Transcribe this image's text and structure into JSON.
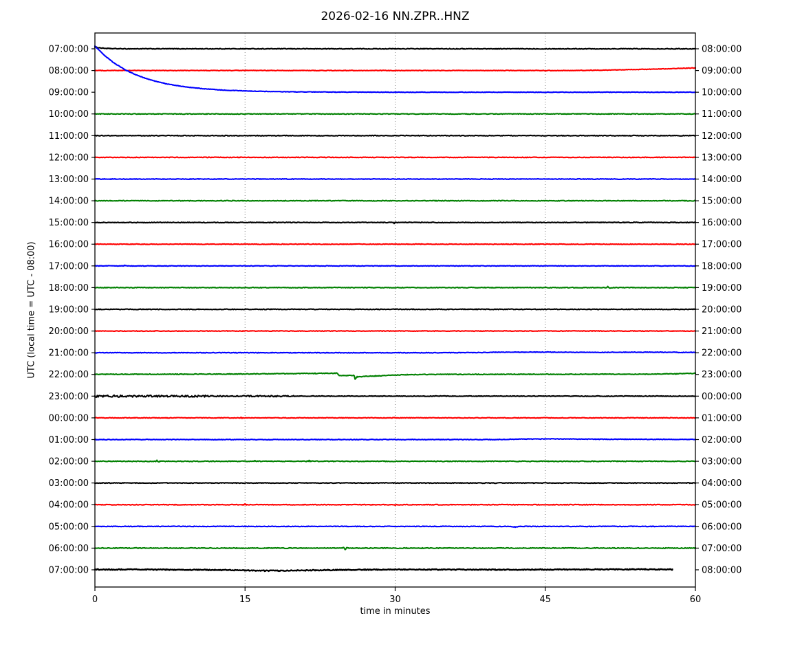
{
  "figure": {
    "title": "2026-02-16 NN.ZPR..HNZ",
    "xlabel": "time in minutes",
    "ylabel": "UTC (local time = UTC - 08:00)"
  },
  "chart_data": {
    "type": "line",
    "subtype": "helicorder-dayplot",
    "title": "2026-02-16 NN.ZPR..HNZ",
    "xlabel": "time in minutes",
    "ylabel": "UTC (local time = UTC - 08:00)",
    "x_range": [
      0,
      60
    ],
    "x_ticks": [
      "0",
      "15",
      "30",
      "45",
      "60"
    ],
    "x_tick_values": [
      0,
      15,
      30,
      45,
      60
    ],
    "grid_minutes": [
      15,
      30,
      45
    ],
    "grid_on": true,
    "minutes_per_line": 60,
    "legend": "none",
    "color_cycle": [
      "#000000",
      "#ff0000",
      "#0000ff",
      "#008000"
    ],
    "rows": [
      {
        "left": "07:00:00",
        "right": "08:00:00",
        "color": "#000000",
        "points": [
          [
            0,
            2.5
          ],
          [
            0.7,
            1.0
          ],
          [
            1.5,
            0.3
          ],
          [
            3,
            0
          ],
          [
            60,
            0
          ]
        ],
        "noise": [
          [
            0,
            60,
            0.5
          ]
        ]
      },
      {
        "left": "08:00:00",
        "right": "09:00:00",
        "color": "#ff0000",
        "points": [
          [
            0,
            0
          ],
          [
            48,
            0
          ],
          [
            52,
            0.8
          ],
          [
            56,
            2.0
          ],
          [
            60,
            3.8
          ]
        ],
        "noise": [
          [
            0,
            60,
            0.4
          ]
        ]
      },
      {
        "left": "09:00:00",
        "right": "10:00:00",
        "color": "#0000ff",
        "points": [
          [
            0,
            67
          ],
          [
            1,
            52.8
          ],
          [
            2,
            41.6
          ],
          [
            3,
            32.8
          ],
          [
            4,
            25.9
          ],
          [
            5,
            20.4
          ],
          [
            6,
            16.1
          ],
          [
            7,
            12.7
          ],
          [
            8,
            10.0
          ],
          [
            9,
            7.9
          ],
          [
            10,
            6.2
          ],
          [
            11,
            4.9
          ],
          [
            12,
            3.9
          ],
          [
            13,
            3.0
          ],
          [
            14,
            2.4
          ],
          [
            15,
            1.9
          ],
          [
            16,
            1.5
          ],
          [
            17,
            1.2
          ],
          [
            18,
            0.9
          ],
          [
            19,
            0.7
          ],
          [
            20,
            0.55
          ],
          [
            22,
            0.35
          ],
          [
            24,
            0.2
          ],
          [
            26,
            0.1
          ],
          [
            28,
            0.05
          ],
          [
            30,
            0
          ],
          [
            60,
            0
          ]
        ],
        "noise": [
          [
            0,
            60,
            0.35
          ]
        ]
      },
      {
        "left": "10:00:00",
        "right": "11:00:00",
        "color": "#008000",
        "points": [
          [
            0,
            0
          ],
          [
            60,
            0
          ]
        ],
        "noise": [
          [
            0,
            60,
            0.5
          ]
        ]
      },
      {
        "left": "11:00:00",
        "right": "12:00:00",
        "color": "#000000",
        "points": [
          [
            0,
            0
          ],
          [
            60,
            0
          ]
        ],
        "noise": [
          [
            0,
            60,
            0.5
          ]
        ]
      },
      {
        "left": "12:00:00",
        "right": "13:00:00",
        "color": "#ff0000",
        "points": [
          [
            0,
            0
          ],
          [
            60,
            0
          ]
        ],
        "noise": [
          [
            0,
            60,
            0.45
          ]
        ]
      },
      {
        "left": "13:00:00",
        "right": "14:00:00",
        "color": "#0000ff",
        "points": [
          [
            0,
            0
          ],
          [
            60,
            0
          ]
        ],
        "noise": [
          [
            0,
            60,
            0.45
          ]
        ]
      },
      {
        "left": "14:00:00",
        "right": "15:00:00",
        "color": "#008000",
        "points": [
          [
            0,
            0
          ],
          [
            60,
            0
          ]
        ],
        "noise": [
          [
            0,
            60,
            0.5
          ]
        ]
      },
      {
        "left": "15:00:00",
        "right": "16:00:00",
        "color": "#000000",
        "points": [
          [
            0,
            0
          ],
          [
            29.8,
            0
          ],
          [
            29.9,
            -1.2
          ],
          [
            30.0,
            0.8
          ],
          [
            30.1,
            0
          ],
          [
            60,
            0
          ]
        ],
        "noise": [
          [
            0,
            60,
            0.5
          ]
        ]
      },
      {
        "left": "16:00:00",
        "right": "17:00:00",
        "color": "#ff0000",
        "points": [
          [
            0,
            0
          ],
          [
            60,
            0
          ]
        ],
        "noise": [
          [
            0,
            60,
            0.45
          ]
        ]
      },
      {
        "left": "17:00:00",
        "right": "18:00:00",
        "color": "#0000ff",
        "points": [
          [
            0,
            0
          ],
          [
            2.9,
            0
          ],
          [
            3.0,
            0.9
          ],
          [
            3.1,
            0
          ],
          [
            60,
            0
          ]
        ],
        "noise": [
          [
            0,
            60,
            0.4
          ]
        ]
      },
      {
        "left": "18:00:00",
        "right": "19:00:00",
        "color": "#008000",
        "points": [
          [
            0,
            0
          ],
          [
            51.1,
            0
          ],
          [
            51.25,
            1.3
          ],
          [
            51.4,
            -0.9
          ],
          [
            51.55,
            0
          ],
          [
            60,
            0
          ]
        ],
        "noise": [
          [
            0,
            60,
            0.5
          ]
        ]
      },
      {
        "left": "19:00:00",
        "right": "20:00:00",
        "color": "#000000",
        "points": [
          [
            0,
            0
          ],
          [
            60,
            0
          ]
        ],
        "noise": [
          [
            0,
            60,
            0.5
          ]
        ]
      },
      {
        "left": "20:00:00",
        "right": "21:00:00",
        "color": "#ff0000",
        "points": [
          [
            0,
            0
          ],
          [
            60,
            0
          ]
        ],
        "noise": [
          [
            0,
            60,
            0.45
          ]
        ]
      },
      {
        "left": "21:00:00",
        "right": "22:00:00",
        "color": "#0000ff",
        "points": [
          [
            0,
            0
          ],
          [
            36,
            0
          ],
          [
            40,
            0.6
          ],
          [
            45,
            0.9
          ],
          [
            50,
            0.5
          ],
          [
            55,
            0.8
          ],
          [
            60,
            0.4
          ]
        ],
        "noise": [
          [
            0,
            60,
            0.45
          ]
        ]
      },
      {
        "left": "22:00:00",
        "right": "23:00:00",
        "color": "#008000",
        "points": [
          [
            0,
            0.2
          ],
          [
            8,
            0.3
          ],
          [
            14,
            0.6
          ],
          [
            18,
            1.0
          ],
          [
            22,
            1.5
          ],
          [
            24.2,
            1.8
          ],
          [
            24.4,
            -1.6
          ],
          [
            25.9,
            -1.5
          ],
          [
            26.0,
            -7.2
          ],
          [
            26.2,
            -3.4
          ],
          [
            27,
            -2.9
          ],
          [
            28,
            -2.3
          ],
          [
            29,
            -1.6
          ],
          [
            30,
            -0.9
          ],
          [
            31,
            -0.4
          ],
          [
            33,
            0
          ],
          [
            40,
            0.2
          ],
          [
            48,
            0.3
          ],
          [
            55,
            0.4
          ],
          [
            58,
            0.9
          ],
          [
            60,
            1.6
          ]
        ],
        "noise": [
          [
            0,
            60,
            0.5
          ]
        ]
      },
      {
        "left": "23:00:00",
        "right": "00:00:00",
        "color": "#000000",
        "points": [
          [
            0,
            0
          ],
          [
            60,
            0
          ]
        ],
        "noise": [
          [
            0,
            3,
            1.6
          ],
          [
            3,
            12,
            1.3
          ],
          [
            12,
            20,
            0.9
          ],
          [
            20,
            60,
            0.5
          ]
        ]
      },
      {
        "left": "00:00:00",
        "right": "01:00:00",
        "color": "#ff0000",
        "points": [
          [
            0,
            0
          ],
          [
            14.5,
            0
          ],
          [
            14.6,
            1.0
          ],
          [
            14.7,
            -0.7
          ],
          [
            14.8,
            0
          ],
          [
            29.8,
            0
          ],
          [
            29.9,
            0.8
          ],
          [
            30,
            0
          ],
          [
            60,
            0
          ]
        ],
        "noise": [
          [
            0,
            60,
            0.45
          ]
        ]
      },
      {
        "left": "01:00:00",
        "right": "02:00:00",
        "color": "#0000ff",
        "points": [
          [
            0,
            0
          ],
          [
            40,
            0
          ],
          [
            43,
            0.8
          ],
          [
            46,
            1.0
          ],
          [
            50,
            0.5
          ],
          [
            55,
            0.3
          ],
          [
            60,
            0.3
          ]
        ],
        "noise": [
          [
            0,
            60,
            0.45
          ]
        ]
      },
      {
        "left": "02:00:00",
        "right": "03:00:00",
        "color": "#008000",
        "points": [
          [
            0,
            0
          ],
          [
            6.1,
            0
          ],
          [
            6.2,
            1.1
          ],
          [
            6.35,
            -0.6
          ],
          [
            6.5,
            0
          ],
          [
            15.9,
            0
          ],
          [
            16.0,
            0.8
          ],
          [
            16.1,
            0
          ],
          [
            21.3,
            0
          ],
          [
            21.4,
            0.9
          ],
          [
            21.5,
            0
          ],
          [
            60,
            0
          ]
        ],
        "noise": [
          [
            0,
            60,
            0.55
          ]
        ]
      },
      {
        "left": "03:00:00",
        "right": "04:00:00",
        "color": "#000000",
        "points": [
          [
            0,
            0
          ],
          [
            60,
            0
          ]
        ],
        "noise": [
          [
            0,
            60,
            0.5
          ]
        ]
      },
      {
        "left": "04:00:00",
        "right": "05:00:00",
        "color": "#ff0000",
        "points": [
          [
            0,
            0
          ],
          [
            14.9,
            0
          ],
          [
            15.0,
            0.8
          ],
          [
            15.1,
            0
          ],
          [
            29.9,
            0
          ],
          [
            30.0,
            -0.8
          ],
          [
            30.1,
            0
          ],
          [
            60,
            0
          ]
        ],
        "noise": [
          [
            0,
            60,
            0.5
          ]
        ]
      },
      {
        "left": "05:00:00",
        "right": "06:00:00",
        "color": "#0000ff",
        "points": [
          [
            0,
            0
          ],
          [
            41.5,
            0
          ],
          [
            42,
            -0.9
          ],
          [
            42.5,
            0
          ],
          [
            60,
            0
          ]
        ],
        "noise": [
          [
            0,
            60,
            0.45
          ]
        ]
      },
      {
        "left": "06:00:00",
        "right": "07:00:00",
        "color": "#008000",
        "points": [
          [
            0,
            0
          ],
          [
            24.7,
            0
          ],
          [
            24.85,
            1.3
          ],
          [
            25.0,
            -2.4
          ],
          [
            25.15,
            1.1
          ],
          [
            25.35,
            0
          ],
          [
            60,
            0
          ]
        ],
        "noise": [
          [
            0,
            60,
            0.55
          ]
        ]
      },
      {
        "left": "07:00:00",
        "right": "08:00:00",
        "color": "#000000",
        "end": 57.7,
        "width": 2.4,
        "points": [
          [
            0,
            0.5
          ],
          [
            4,
            0.4
          ],
          [
            8,
            0.2
          ],
          [
            12,
            -0.1
          ],
          [
            15,
            -0.7
          ],
          [
            17,
            -1.3
          ],
          [
            19,
            -1.2
          ],
          [
            21,
            -0.8
          ],
          [
            24,
            -0.2
          ],
          [
            27,
            0.2
          ],
          [
            31,
            0.4
          ],
          [
            35,
            0.4
          ],
          [
            40,
            0.2
          ],
          [
            44,
            0.3
          ],
          [
            48,
            0.5
          ],
          [
            52,
            0.7
          ],
          [
            55,
            0.7
          ],
          [
            57.7,
            0.4
          ]
        ],
        "noise": [
          [
            0,
            57.7,
            0.7
          ]
        ]
      }
    ]
  }
}
